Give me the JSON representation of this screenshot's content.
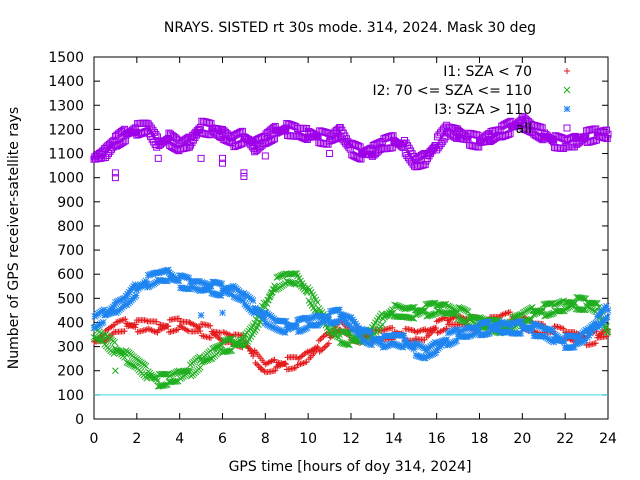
{
  "chart_data": {
    "type": "scatter",
    "title": "NRAYS. SISTED rt 30s mode. 314, 2024. Mask 30 deg",
    "xlabel": "GPS time [hours of doy 314, 2024]",
    "ylabel": "Number of GPS receiver-satellite rays",
    "xlim": [
      0,
      24
    ],
    "ylim": [
      0,
      1500
    ],
    "x_ticks": [
      0,
      2,
      4,
      6,
      8,
      10,
      12,
      14,
      16,
      18,
      20,
      22,
      24
    ],
    "y_ticks": [
      0,
      100,
      200,
      300,
      400,
      500,
      600,
      700,
      800,
      900,
      1000,
      1100,
      1200,
      1300,
      1400,
      1500
    ],
    "reference_line": {
      "value": 100,
      "color": "#44d8e0"
    },
    "legend_position": "top-right",
    "series": [
      {
        "name": "I1: SZA < 70",
        "marker": "plus",
        "color": "#e41a1c",
        "x": [
          0,
          0.5,
          1,
          1.5,
          2,
          2.5,
          3,
          3.5,
          4,
          4.5,
          5,
          5.5,
          6,
          6.5,
          7,
          7.5,
          8,
          8.5,
          9,
          9.5,
          10,
          10.5,
          11,
          11.5,
          12,
          12.5,
          13,
          13.5,
          14,
          14.5,
          15,
          15.5,
          16,
          16.5,
          17,
          17.5,
          18,
          18.5,
          19,
          19.5,
          20,
          20.5,
          21,
          21.5,
          22,
          22.5,
          23,
          23.5,
          24
        ],
        "values": [
          320,
          340,
          380,
          390,
          385,
          390,
          380,
          385,
          395,
          380,
          370,
          360,
          340,
          330,
          320,
          260,
          210,
          225,
          230,
          235,
          260,
          300,
          340,
          390,
          350,
          340,
          345,
          350,
          355,
          350,
          345,
          350,
          380,
          400,
          410,
          400,
          395,
          400,
          410,
          420,
          400,
          380,
          370,
          360,
          350,
          340,
          330,
          340,
          360
        ]
      },
      {
        "name": "I2: 70 <= SZA <= 110",
        "marker": "cross",
        "color": "#1fae1f",
        "x": [
          0,
          0.5,
          1,
          1.5,
          2,
          2.5,
          3,
          3.5,
          4,
          4.5,
          5,
          5.5,
          6,
          6.5,
          7,
          7.5,
          8,
          8.5,
          9,
          9.5,
          10,
          10.5,
          11,
          11.5,
          12,
          12.5,
          13,
          13.5,
          14,
          14.5,
          15,
          15.5,
          16,
          16.5,
          17,
          17.5,
          18,
          18.5,
          19,
          19.5,
          20,
          20.5,
          21,
          21.5,
          22,
          22.5,
          23,
          23.5,
          24
        ],
        "values": [
          360,
          330,
          290,
          260,
          230,
          190,
          160,
          165,
          180,
          200,
          240,
          270,
          300,
          310,
          320,
          380,
          470,
          560,
          585,
          580,
          520,
          450,
          380,
          340,
          330,
          335,
          360,
          420,
          450,
          440,
          440,
          450,
          460,
          455,
          440,
          420,
          400,
          390,
          380,
          395,
          420,
          440,
          450,
          460,
          470,
          480,
          475,
          460,
          360
        ]
      },
      {
        "name": "I3: SZA > 110",
        "marker": "star",
        "color": "#1e84f0",
        "x": [
          0,
          0.5,
          1,
          1.5,
          2,
          2.5,
          3,
          3.5,
          4,
          4.5,
          5,
          5.5,
          6,
          6.5,
          7,
          7.5,
          8,
          8.5,
          9,
          9.5,
          10,
          10.5,
          11,
          11.5,
          12,
          12.5,
          13,
          13.5,
          14,
          14.5,
          15,
          15.5,
          16,
          16.5,
          17,
          17.5,
          18,
          18.5,
          19,
          19.5,
          20,
          20.5,
          21,
          21.5,
          22,
          22.5,
          23,
          23.5,
          24
        ],
        "values": [
          400,
          430,
          460,
          490,
          540,
          570,
          590,
          595,
          570,
          560,
          550,
          545,
          535,
          530,
          500,
          460,
          420,
          390,
          380,
          385,
          400,
          410,
          420,
          430,
          400,
          350,
          330,
          320,
          330,
          320,
          290,
          270,
          300,
          330,
          350,
          360,
          370,
          380,
          380,
          375,
          380,
          370,
          360,
          340,
          320,
          320,
          350,
          400,
          450
        ]
      },
      {
        "name": "all",
        "marker": "square",
        "color": "#9e00e8",
        "x": [
          0,
          0.5,
          1,
          1.5,
          2,
          2.5,
          3,
          3.5,
          4,
          4.5,
          5,
          5.5,
          6,
          6.5,
          7,
          7.5,
          8,
          8.5,
          9,
          9.5,
          10,
          10.5,
          11,
          11.5,
          12,
          12.5,
          13,
          13.5,
          14,
          14.5,
          15,
          15.5,
          16,
          16.5,
          17,
          17.5,
          18,
          18.5,
          19,
          19.5,
          20,
          20.5,
          21,
          21.5,
          22,
          22.5,
          23,
          23.5,
          24
        ],
        "values": [
          1080,
          1100,
          1150,
          1180,
          1200,
          1210,
          1140,
          1160,
          1130,
          1150,
          1210,
          1200,
          1180,
          1150,
          1170,
          1130,
          1160,
          1190,
          1200,
          1190,
          1180,
          1170,
          1160,
          1190,
          1120,
          1100,
          1110,
          1140,
          1150,
          1130,
          1060,
          1080,
          1140,
          1200,
          1180,
          1160,
          1150,
          1170,
          1190,
          1210,
          1230,
          1200,
          1180,
          1150,
          1140,
          1150,
          1170,
          1180,
          1180
        ]
      }
    ],
    "outliers": [
      {
        "series": "I1: SZA < 70",
        "x": 7.8,
        "y": 205
      },
      {
        "series": "I2: 70 <= SZA <= 110",
        "x": 1.0,
        "y": 200
      },
      {
        "series": "I3: SZA > 110",
        "x": 5.0,
        "y": 430
      },
      {
        "series": "I3: SZA > 110",
        "x": 6.0,
        "y": 440
      },
      {
        "series": "all",
        "x": 1.0,
        "y": 1020
      },
      {
        "series": "all",
        "x": 1.0,
        "y": 1000
      },
      {
        "series": "all",
        "x": 5.0,
        "y": 1080
      },
      {
        "series": "all",
        "x": 6.0,
        "y": 1080
      },
      {
        "series": "all",
        "x": 6.0,
        "y": 1060
      },
      {
        "series": "all",
        "x": 7.0,
        "y": 1020
      },
      {
        "series": "all",
        "x": 7.0,
        "y": 1005
      },
      {
        "series": "all",
        "x": 8.0,
        "y": 1090
      },
      {
        "series": "all",
        "x": 3.0,
        "y": 1080
      },
      {
        "series": "all",
        "x": 11.0,
        "y": 1100
      }
    ]
  }
}
